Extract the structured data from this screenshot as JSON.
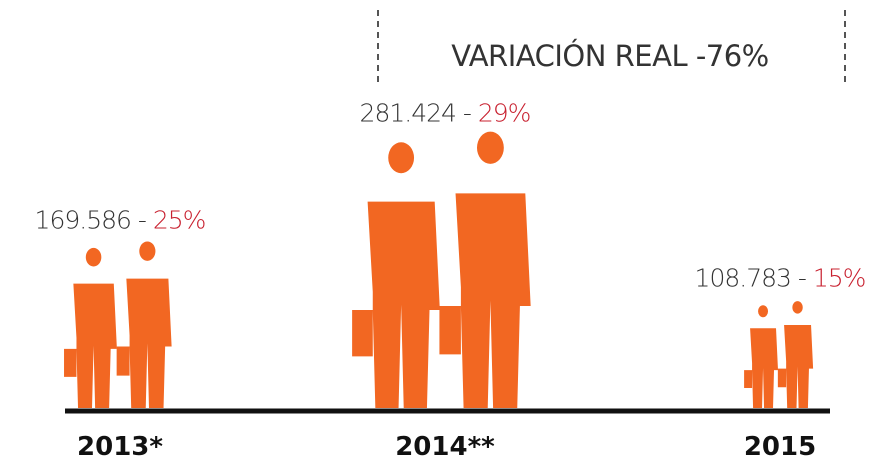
{
  "chart_data": {
    "type": "pictogram",
    "annotation": "VARIACIÓN REAL -76%",
    "categories": [
      "2013*",
      "2014**",
      "2015"
    ],
    "values": [
      169586,
      281424,
      108783
    ],
    "value_labels": [
      "169.586",
      "281.424",
      "108.783"
    ],
    "label_separator": " - ",
    "share_labels": [
      "25%",
      "29%",
      "15%"
    ],
    "color": "#f26722"
  }
}
